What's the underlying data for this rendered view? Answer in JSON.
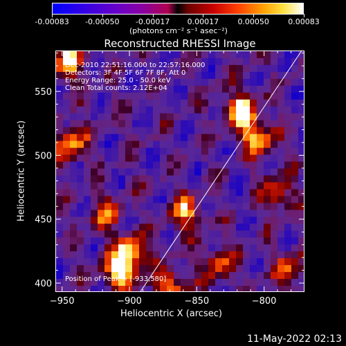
{
  "colorbar": {
    "tick_labels": [
      "-0.00083",
      "-0.00050",
      "-0.00017",
      "0.00017",
      "0.00050",
      "0.00083"
    ],
    "unit_label": "(photons cm⁻² s⁻¹ asec⁻²)"
  },
  "chart_data": {
    "type": "heatmap",
    "title": "Reconstructed RHESSI Image",
    "xlabel": "Heliocentric X (arcsec)",
    "ylabel": "Heliocentric Y (arcsec)",
    "xlim": [
      -955,
      -770
    ],
    "ylim": [
      393,
      582
    ],
    "xticks": [
      -950,
      -900,
      -850,
      -800
    ],
    "xtick_labels": [
      "−950",
      "−900",
      "−850",
      "−800"
    ],
    "yticks": [
      400,
      450,
      500,
      550
    ],
    "ytick_labels": [
      "400",
      "450",
      "500",
      "550"
    ],
    "value_range": [
      -0.00083,
      0.00083
    ],
    "limb_line": {
      "x": [
        -892,
        -772
      ],
      "y": [
        393,
        582
      ]
    },
    "hotspots": [
      {
        "x": -908,
        "y": 410,
        "level": 1.0
      },
      {
        "x": -898,
        "y": 425,
        "level": 0.85
      },
      {
        "x": -945,
        "y": 510,
        "level": 0.75
      },
      {
        "x": -945,
        "y": 575,
        "level": 0.8
      },
      {
        "x": -818,
        "y": 535,
        "level": 0.95
      },
      {
        "x": -805,
        "y": 515,
        "level": 0.8
      },
      {
        "x": -858,
        "y": 455,
        "level": 0.7
      },
      {
        "x": -918,
        "y": 455,
        "level": 0.55
      },
      {
        "x": -790,
        "y": 470,
        "level": 0.6
      },
      {
        "x": -835,
        "y": 415,
        "level": 0.55
      },
      {
        "x": -780,
        "y": 410,
        "level": 0.6
      },
      {
        "x": -870,
        "y": 398,
        "level": 0.7
      }
    ],
    "annotations": [
      "Dec-2010 22:51:16.000 to 22:57:16.000",
      "Detectors: 3F 4F 5F 6F 7F 8F, Att 0",
      "Energy Range: 25.0 - 50.0 keV",
      "Clean    Total counts: 2.12E+04"
    ],
    "peak_label": "Position of Peak = [-933,580]"
  },
  "footer": {
    "timestamp": "11-May-2022 02:13"
  }
}
